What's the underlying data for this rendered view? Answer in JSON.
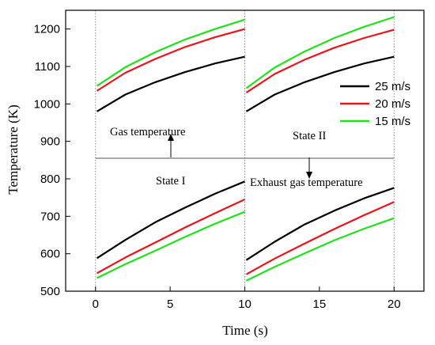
{
  "chart_data": {
    "type": "line",
    "xlabel": "Time (s)",
    "ylabel": "Temperature (K)",
    "xlim": [
      -2,
      22
    ],
    "ylim": [
      500,
      1250
    ],
    "xticks": [
      0,
      5,
      10,
      15,
      20
    ],
    "yticks": [
      500,
      600,
      700,
      800,
      900,
      1000,
      1100,
      1200
    ],
    "divider_x": [
      0,
      10,
      20
    ],
    "divider_y": 855,
    "grid": false,
    "legend": {
      "position": "right",
      "entries": [
        "25 m/s",
        "20 m/s",
        "15 m/s"
      ]
    },
    "colors": {
      "25 m/s": "#000000",
      "20 m/s": "#e8141c",
      "15 m/s": "#22e01b"
    },
    "annotations": {
      "gas_temperature": "Gas temperature",
      "state_1": "State I",
      "state_2": "State II",
      "exhaust_gas_temperature": "Exhaust gas temperature"
    },
    "series": [
      {
        "name": "25 m/s",
        "group": "gas",
        "x": [
          0.1,
          2,
          4,
          6,
          8,
          10
        ],
        "y": [
          980,
          1025,
          1058,
          1085,
          1108,
          1126
        ]
      },
      {
        "name": "20 m/s",
        "group": "gas",
        "x": [
          0.1,
          2,
          4,
          6,
          8,
          10
        ],
        "y": [
          1035,
          1083,
          1120,
          1152,
          1178,
          1200
        ]
      },
      {
        "name": "15 m/s",
        "group": "gas",
        "x": [
          0.1,
          2,
          4,
          6,
          8,
          10
        ],
        "y": [
          1048,
          1098,
          1138,
          1172,
          1200,
          1225
        ]
      },
      {
        "name": "25 m/s",
        "group": "gas",
        "x": [
          10.1,
          12,
          14,
          16,
          18,
          20
        ],
        "y": [
          980,
          1025,
          1058,
          1085,
          1108,
          1126
        ]
      },
      {
        "name": "20 m/s",
        "group": "gas",
        "x": [
          10.1,
          12,
          14,
          16,
          18,
          20
        ],
        "y": [
          1030,
          1080,
          1118,
          1150,
          1176,
          1198
        ]
      },
      {
        "name": "15 m/s",
        "group": "gas",
        "x": [
          10.1,
          12,
          14,
          16,
          18,
          20
        ],
        "y": [
          1042,
          1097,
          1140,
          1176,
          1206,
          1232
        ]
      },
      {
        "name": "25 m/s",
        "group": "exhaust",
        "x": [
          0.1,
          2,
          4,
          6,
          8,
          10
        ],
        "y": [
          588,
          637,
          684,
          723,
          760,
          793
        ]
      },
      {
        "name": "20 m/s",
        "group": "exhaust",
        "x": [
          0.1,
          2,
          4,
          6,
          8,
          10
        ],
        "y": [
          548,
          590,
          630,
          670,
          708,
          745
        ]
      },
      {
        "name": "15 m/s",
        "group": "exhaust",
        "x": [
          0.1,
          2,
          4,
          6,
          8,
          10
        ],
        "y": [
          535,
          572,
          608,
          645,
          680,
          712
        ]
      },
      {
        "name": "25 m/s",
        "group": "exhaust",
        "x": [
          10.1,
          12,
          14,
          16,
          18,
          20
        ],
        "y": [
          583,
          632,
          678,
          715,
          748,
          776
        ]
      },
      {
        "name": "20 m/s",
        "group": "exhaust",
        "x": [
          10.1,
          12,
          14,
          16,
          18,
          20
        ],
        "y": [
          545,
          587,
          627,
          666,
          703,
          738
        ]
      },
      {
        "name": "15 m/s",
        "group": "exhaust",
        "x": [
          10.1,
          12,
          14,
          16,
          18,
          20
        ],
        "y": [
          528,
          565,
          601,
          636,
          667,
          695
        ]
      }
    ]
  }
}
